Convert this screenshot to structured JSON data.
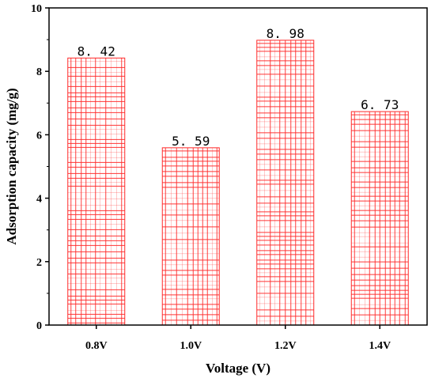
{
  "chart_data": {
    "type": "bar",
    "title": "",
    "xlabel": "Voltage (V)",
    "ylabel": "Adsorption capacity (mg/g)",
    "categories": [
      "0.8V",
      "1.0V",
      "1.2V",
      "1.4V"
    ],
    "values": [
      8.42,
      5.59,
      8.98,
      6.73
    ],
    "data_labels": [
      "8. 42",
      "5. 59",
      "8. 98",
      "6. 73"
    ],
    "ylim": [
      0,
      10
    ],
    "yticks": [
      "0",
      "2",
      "4",
      "6",
      "8",
      "10"
    ],
    "grid": false,
    "bar_pattern": "red grid hatch",
    "colors": {
      "bar_line": "#ff2a2a",
      "bar_fill": "#ffffff",
      "axis": "#000000"
    }
  }
}
